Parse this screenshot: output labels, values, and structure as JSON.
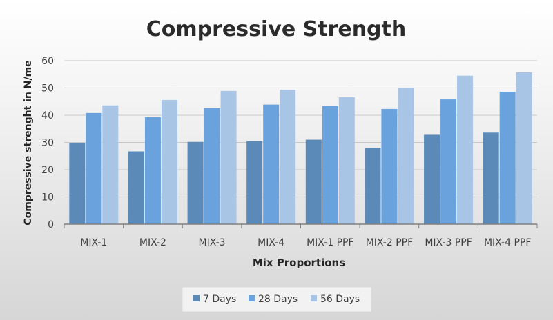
{
  "chart_data": {
    "type": "bar",
    "title": "Compressive Strength",
    "xlabel": "Mix Proportions",
    "ylabel": "Compressive strenght in N/me",
    "categories": [
      "MIX-1",
      "MIX-2",
      "MIX-3",
      "MIX-4",
      "MIX-1 PPF",
      "MIX-2 PPF",
      "MIX-3 PPF",
      "MIX-4 PPF"
    ],
    "series": [
      {
        "name": "7 Days",
        "color": "#5b8ab9",
        "values": [
          29.7,
          26.7,
          30.2,
          30.5,
          31.0,
          28.0,
          32.8,
          33.6
        ]
      },
      {
        "name": "28 Days",
        "color": "#6aa2de",
        "values": [
          40.8,
          39.3,
          42.6,
          43.9,
          43.4,
          42.3,
          45.8,
          48.6
        ]
      },
      {
        "name": "56 Days",
        "color": "#a9c5e6",
        "values": [
          43.6,
          45.6,
          48.9,
          49.3,
          46.6,
          50.0,
          54.5,
          55.7
        ]
      }
    ],
    "ylim": [
      0,
      60
    ],
    "yticks": [
      0,
      10,
      20,
      30,
      40,
      50,
      60
    ],
    "grid": true,
    "legend": "bottom"
  }
}
